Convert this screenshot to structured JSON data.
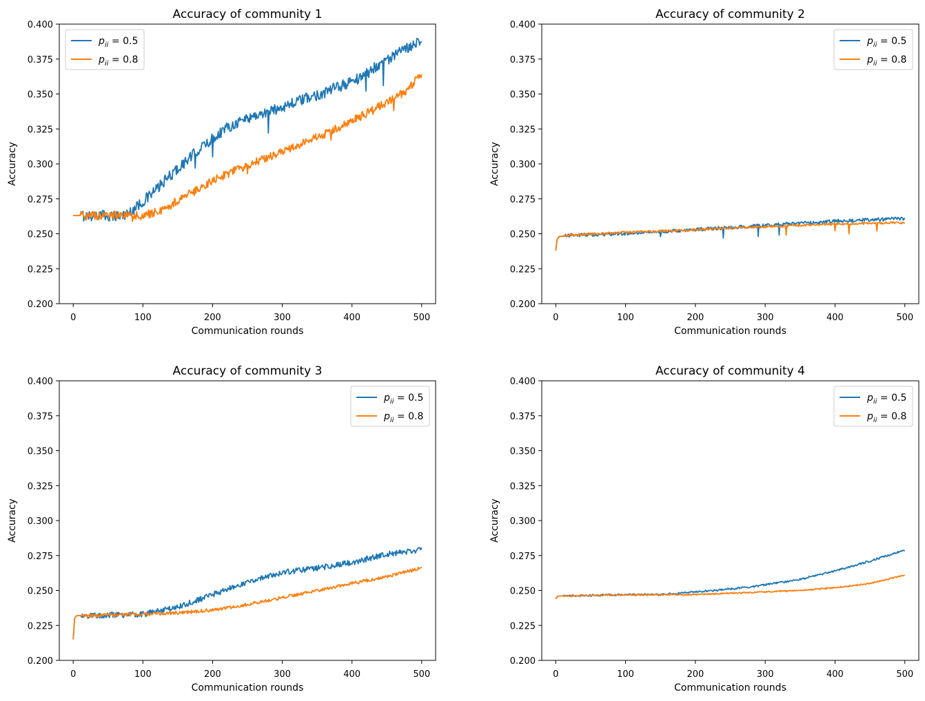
{
  "colors": {
    "series_0.5": "#1f77b4",
    "series_0.8": "#ff7f0e"
  },
  "chart_data": [
    {
      "type": "line",
      "title": "Accuracy of community 1",
      "xlabel": "Communication rounds",
      "ylabel": "Accuracy",
      "xlim": [
        -20,
        520
      ],
      "ylim": [
        0.2,
        0.4
      ],
      "xticks": [
        0,
        100,
        200,
        300,
        400,
        500
      ],
      "yticks": [
        0.2,
        0.225,
        0.25,
        0.275,
        0.3,
        0.325,
        0.35,
        0.375,
        0.4
      ],
      "ytick_labels": [
        "0.200",
        "0.225",
        "0.250",
        "0.275",
        "0.300",
        "0.325",
        "0.350",
        "0.375",
        "0.400"
      ],
      "legend_loc": "upper left",
      "series": [
        {
          "name": "p_ii = 0.5",
          "legend_var": "p",
          "legend_sub": "ii",
          "legend_value": "= 0.5",
          "color": "#1f77b4",
          "x": [
            0,
            50,
            70,
            80,
            100,
            120,
            140,
            160,
            180,
            200,
            220,
            250,
            280,
            300,
            330,
            360,
            400,
            420,
            440,
            460,
            480,
            500
          ],
          "values": [
            0.263,
            0.263,
            0.263,
            0.265,
            0.273,
            0.282,
            0.292,
            0.301,
            0.31,
            0.318,
            0.326,
            0.333,
            0.337,
            0.341,
            0.346,
            0.351,
            0.359,
            0.364,
            0.372,
            0.377,
            0.383,
            0.39
          ],
          "noise": 0.004,
          "dips": [
            [
              175,
              0.297
            ],
            [
              200,
              0.305
            ],
            [
              280,
              0.322
            ],
            [
              420,
              0.352
            ],
            [
              445,
              0.356
            ]
          ]
        },
        {
          "name": "p_ii = 0.8",
          "legend_var": "p",
          "legend_sub": "ii",
          "legend_value": "= 0.8",
          "color": "#ff7f0e",
          "x": [
            0,
            80,
            100,
            130,
            150,
            180,
            200,
            230,
            260,
            300,
            330,
            360,
            400,
            420,
            440,
            460,
            480,
            500
          ],
          "values": [
            0.263,
            0.263,
            0.263,
            0.267,
            0.274,
            0.282,
            0.288,
            0.295,
            0.301,
            0.309,
            0.315,
            0.321,
            0.331,
            0.336,
            0.341,
            0.347,
            0.353,
            0.365
          ],
          "noise": 0.003,
          "dips": [
            [
              85,
              0.259
            ],
            [
              250,
              0.293
            ],
            [
              370,
              0.317
            ],
            [
              460,
              0.338
            ]
          ]
        }
      ]
    },
    {
      "type": "line",
      "title": "Accuracy of community 2",
      "xlabel": "Communication rounds",
      "ylabel": "Accuracy",
      "xlim": [
        -20,
        520
      ],
      "ylim": [
        0.2,
        0.4
      ],
      "xticks": [
        0,
        100,
        200,
        300,
        400,
        500
      ],
      "yticks": [
        0.2,
        0.225,
        0.25,
        0.275,
        0.3,
        0.325,
        0.35,
        0.375,
        0.4
      ],
      "ytick_labels": [
        "0.200",
        "0.225",
        "0.250",
        "0.275",
        "0.300",
        "0.325",
        "0.350",
        "0.375",
        "0.400"
      ],
      "legend_loc": "upper right",
      "series": [
        {
          "name": "p_ii = 0.5",
          "legend_var": "p",
          "legend_sub": "ii",
          "legend_value": "= 0.5",
          "color": "#1f77b4",
          "x": [
            0,
            2,
            5,
            20,
            100,
            200,
            300,
            400,
            500
          ],
          "values": [
            0.238,
            0.246,
            0.248,
            0.249,
            0.25,
            0.253,
            0.256,
            0.259,
            0.261
          ],
          "noise": 0.0012,
          "dips": [
            [
              150,
              0.248
            ],
            [
              240,
              0.247
            ],
            [
              290,
              0.248
            ],
            [
              320,
              0.249
            ]
          ]
        },
        {
          "name": "p_ii = 0.8",
          "legend_var": "p",
          "legend_sub": "ii",
          "legend_value": "= 0.8",
          "color": "#ff7f0e",
          "x": [
            0,
            2,
            5,
            20,
            100,
            200,
            300,
            400,
            500
          ],
          "values": [
            0.238,
            0.246,
            0.248,
            0.249,
            0.251,
            0.253,
            0.255,
            0.257,
            0.258
          ],
          "noise": 0.0008,
          "dips": [
            [
              330,
              0.249
            ],
            [
              400,
              0.252
            ],
            [
              420,
              0.25
            ],
            [
              460,
              0.252
            ]
          ]
        }
      ]
    },
    {
      "type": "line",
      "title": "Accuracy of community 3",
      "xlabel": "Communication rounds",
      "ylabel": "Accuracy",
      "xlim": [
        -20,
        520
      ],
      "ylim": [
        0.2,
        0.4
      ],
      "xticks": [
        0,
        100,
        200,
        300,
        400,
        500
      ],
      "yticks": [
        0.2,
        0.225,
        0.25,
        0.275,
        0.3,
        0.325,
        0.35,
        0.375,
        0.4
      ],
      "ytick_labels": [
        "0.200",
        "0.225",
        "0.250",
        "0.275",
        "0.300",
        "0.325",
        "0.350",
        "0.375",
        "0.400"
      ],
      "legend_loc": "upper right",
      "series": [
        {
          "name": "p_ii = 0.5",
          "legend_var": "p",
          "legend_sub": "ii",
          "legend_value": "= 0.5",
          "color": "#1f77b4",
          "x": [
            0,
            2,
            5,
            20,
            100,
            150,
            200,
            250,
            300,
            350,
            400,
            450,
            500
          ],
          "values": [
            0.215,
            0.23,
            0.232,
            0.232,
            0.233,
            0.238,
            0.247,
            0.256,
            0.263,
            0.266,
            0.27,
            0.276,
            0.279
          ],
          "noise": 0.002,
          "dips": []
        },
        {
          "name": "p_ii = 0.8",
          "legend_var": "p",
          "legend_sub": "ii",
          "legend_value": "= 0.8",
          "color": "#ff7f0e",
          "x": [
            0,
            2,
            5,
            20,
            100,
            150,
            200,
            250,
            300,
            350,
            400,
            450,
            500
          ],
          "values": [
            0.215,
            0.23,
            0.232,
            0.232,
            0.233,
            0.234,
            0.236,
            0.24,
            0.245,
            0.25,
            0.255,
            0.26,
            0.266
          ],
          "noise": 0.0012,
          "dips": []
        }
      ]
    },
    {
      "type": "line",
      "title": "Accuracy of community 4",
      "xlabel": "Communication rounds",
      "ylabel": "Accuracy",
      "xlim": [
        -20,
        520
      ],
      "ylim": [
        0.2,
        0.4
      ],
      "xticks": [
        0,
        100,
        200,
        300,
        400,
        500
      ],
      "yticks": [
        0.2,
        0.225,
        0.25,
        0.275,
        0.3,
        0.325,
        0.35,
        0.375,
        0.4
      ],
      "ytick_labels": [
        "0.200",
        "0.225",
        "0.250",
        "0.275",
        "0.300",
        "0.325",
        "0.350",
        "0.375",
        "0.400"
      ],
      "legend_loc": "upper right",
      "series": [
        {
          "name": "p_ii = 0.5",
          "legend_var": "p",
          "legend_sub": "ii",
          "legend_value": "= 0.5",
          "color": "#1f77b4",
          "x": [
            0,
            3,
            10,
            100,
            150,
            200,
            250,
            300,
            350,
            400,
            450,
            500
          ],
          "values": [
            0.244,
            0.246,
            0.246,
            0.247,
            0.247,
            0.249,
            0.251,
            0.254,
            0.258,
            0.264,
            0.271,
            0.279
          ],
          "noise": 0.0007,
          "dips": []
        },
        {
          "name": "p_ii = 0.8",
          "legend_var": "p",
          "legend_sub": "ii",
          "legend_value": "= 0.8",
          "color": "#ff7f0e",
          "x": [
            0,
            3,
            10,
            100,
            150,
            200,
            250,
            300,
            350,
            400,
            450,
            500
          ],
          "values": [
            0.244,
            0.246,
            0.246,
            0.247,
            0.247,
            0.247,
            0.248,
            0.249,
            0.25,
            0.252,
            0.255,
            0.261
          ],
          "noise": 0.0005,
          "dips": []
        }
      ]
    }
  ]
}
